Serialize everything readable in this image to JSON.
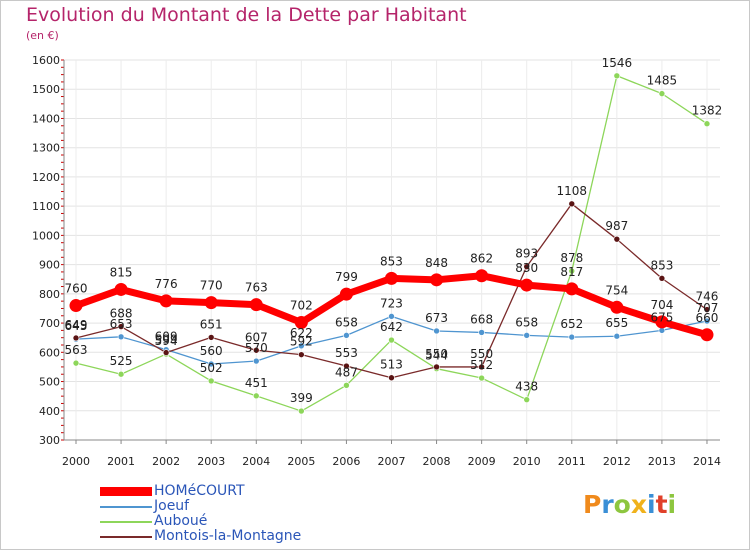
{
  "chart_data": {
    "type": "line",
    "title": "Evolution du Montant de la Dette par Habitant",
    "subtitle": "(en €)",
    "x": [
      "2000",
      "2001",
      "2002",
      "2003",
      "2004",
      "2005",
      "2006",
      "2007",
      "2008",
      "2009",
      "2010",
      "2011",
      "2012",
      "2013",
      "2014"
    ],
    "ylim": [
      300,
      1600
    ],
    "yticks": [
      300,
      400,
      500,
      600,
      700,
      800,
      900,
      1000,
      1100,
      1200,
      1300,
      1400,
      1500,
      1600
    ],
    "grid": true,
    "legend_position": "bottom-left",
    "series": [
      {
        "name": "HOMéCOURT",
        "color": "#ff0000",
        "values": [
          760,
          815,
          776,
          770,
          763,
          702,
          799,
          853,
          848,
          862,
          830,
          817,
          754,
          704,
          660
        ]
      },
      {
        "name": "Joeuf",
        "color": "#4f95d0",
        "values": [
          645,
          653,
          609,
          560,
          570,
          622,
          658,
          723,
          673,
          668,
          658,
          652,
          655,
          675,
          707
        ]
      },
      {
        "name": "Auboué",
        "color": "#8dd65a",
        "values": [
          563,
          525,
          594,
          502,
          451,
          399,
          487,
          642,
          544,
          512,
          438,
          878,
          1546,
          1485,
          1382
        ]
      },
      {
        "name": "Montois-la-Montagne",
        "color": "#7a2a2a",
        "values": [
          649,
          688,
          599,
          651,
          607,
          592,
          553,
          513,
          550,
          550,
          893,
          1108,
          987,
          853,
          746
        ]
      }
    ],
    "data_labels": [
      [
        "760",
        "815",
        "776",
        "770",
        "763",
        "702",
        "799",
        "853",
        "848",
        "862",
        "830",
        "817",
        "754",
        "704",
        "660"
      ],
      [
        "645",
        "653",
        "609",
        "560",
        "570",
        "622",
        "658",
        "723",
        "673",
        "668",
        "658",
        "652",
        "655",
        "675",
        "707"
      ],
      [
        "563",
        "525",
        "594",
        "502",
        "451",
        "399",
        "487",
        "642",
        "544",
        "512",
        "438",
        "878",
        "1546",
        "1485",
        "1382"
      ],
      [
        "649",
        "688",
        "599",
        "651",
        "607",
        "592",
        "553",
        "513",
        "550",
        "550",
        "893",
        "1108",
        "987",
        "853",
        "746"
      ]
    ]
  },
  "logo": {
    "text": "Proxiti"
  }
}
